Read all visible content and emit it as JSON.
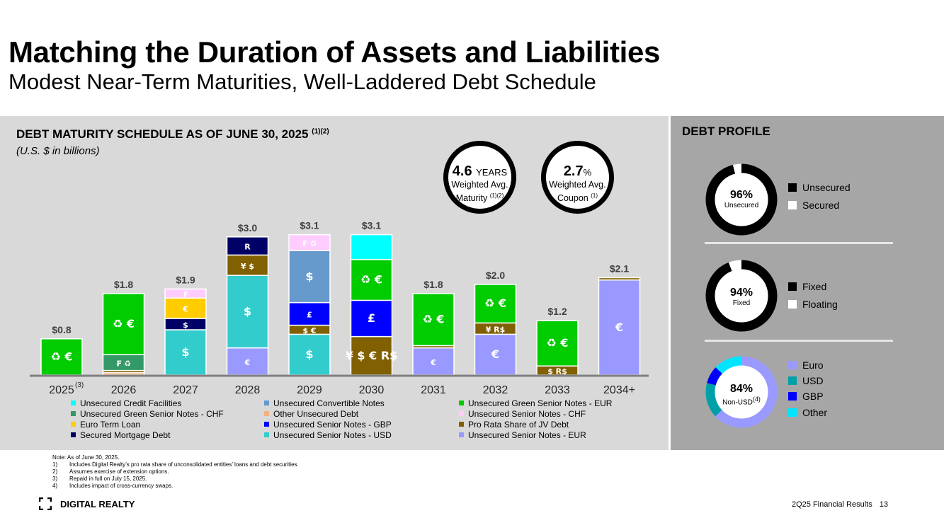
{
  "header": {
    "title": "Matching the Duration of Assets and Liabilities",
    "subtitle": "Modest Near-Term Maturities, Well-Laddered Debt Schedule"
  },
  "left_panel": {
    "title": "DEBT MATURITY SCHEDULE AS OF JUNE 30, 2025",
    "title_note": "(1)(2)",
    "units": "(U.S. $ in billions)"
  },
  "stats": [
    {
      "value": "4.6",
      "unit": "YEARS",
      "line1": "Weighted Avg.",
      "line2": "Maturity",
      "note": "(1)(2)"
    },
    {
      "value": "2.7",
      "unit": "%",
      "line1": "Weighted Avg.",
      "line2": "Coupon",
      "note": "(1)"
    }
  ],
  "colors": {
    "cyan": "#00ffff",
    "green_chf": "#339966",
    "yellow": "#ffcc00",
    "navy": "#000066",
    "blue_conv": "#6699cc",
    "salmon": "#f4b183",
    "gbp": "#0000ff",
    "teal": "#33cccc",
    "green": "#00cc00",
    "pink": "#ffccff",
    "olive": "#806000",
    "lavender": "#9999ff"
  },
  "chart_data": {
    "type": "bar",
    "stacked": true,
    "title": "DEBT MATURITY SCHEDULE AS OF JUNE 30, 2025",
    "ylabel": "U.S. $ in billions",
    "ylim": [
      0,
      3.5
    ],
    "categories": [
      "2025",
      "2026",
      "2027",
      "2028",
      "2029",
      "2030",
      "2031",
      "2032",
      "2033",
      "2034+"
    ],
    "category_notes": [
      "(3)",
      "",
      "",
      "",
      "",
      "",
      "",
      "",
      "",
      ""
    ],
    "totals": [
      "$0.8",
      "$1.8",
      "$1.9",
      "$3.0",
      "$3.1",
      "$3.1",
      "$1.8",
      "$2.0",
      "$1.2",
      "$2.1"
    ],
    "series": [
      {
        "name": "Unsecured Senior Notes - EUR",
        "color": "lavender",
        "values": [
          0,
          0,
          0,
          0.6,
          0,
          0,
          0.6,
          0.9,
          0,
          2.1
        ],
        "symbols": [
          "",
          "",
          "",
          "€",
          "",
          "",
          "€",
          "€",
          "",
          "€"
        ]
      },
      {
        "name": "Unsecured Senior Notes - USD",
        "color": "teal",
        "values": [
          0,
          0,
          1.0,
          1.6,
          0.9,
          0,
          0,
          0,
          0,
          0
        ],
        "symbols": [
          "",
          "",
          "$",
          "$",
          "$",
          "",
          "",
          "",
          "",
          ""
        ]
      },
      {
        "name": "Other Unsecured Debt",
        "color": "salmon",
        "values": [
          0,
          0.05,
          0,
          0,
          0,
          0,
          0,
          0,
          0,
          0
        ],
        "symbols": [
          "",
          "",
          "",
          "",
          "",
          "",
          "",
          "",
          "",
          ""
        ]
      },
      {
        "name": "Pro Rata Share of JV Debt",
        "color": "olive",
        "values": [
          0,
          0.05,
          0,
          0.45,
          0.2,
          0.85,
          0.05,
          0.25,
          0.2,
          0.05
        ],
        "symbols": [
          "",
          "",
          "",
          "¥ $",
          "$ €",
          "¥ $ € R$",
          "",
          "¥ R$",
          "$ R$",
          ""
        ]
      },
      {
        "name": "Unsecured Green Senior Notes - CHF",
        "color": "green_chf",
        "values": [
          0,
          0.35,
          0,
          0,
          0,
          0,
          0,
          0,
          0,
          0
        ],
        "symbols": [
          "",
          "₣ ♻",
          "",
          "",
          "",
          "",
          "",
          "",
          "",
          ""
        ]
      },
      {
        "name": "Unsecured Senior Notes - GBP",
        "color": "gbp",
        "values": [
          0,
          0,
          0,
          0,
          0.5,
          0.8,
          0,
          0,
          0,
          0
        ],
        "symbols": [
          "",
          "",
          "",
          "",
          "£",
          "£",
          "",
          "",
          "",
          ""
        ]
      },
      {
        "name": "Secured Mortgage Debt",
        "color": "navy",
        "values": [
          0,
          0,
          0.25,
          0.4,
          0,
          0,
          0,
          0,
          0,
          0
        ],
        "symbols": [
          "",
          "",
          "$",
          "R",
          "",
          "",
          "",
          "",
          "",
          ""
        ]
      },
      {
        "name": "Unsecured Convertible Notes",
        "color": "blue_conv",
        "values": [
          0,
          0,
          0,
          0,
          1.15,
          0,
          0,
          0,
          0,
          0
        ],
        "symbols": [
          "",
          "",
          "",
          "",
          "$",
          "",
          "",
          "",
          "",
          ""
        ]
      },
      {
        "name": "Unsecured Green Senior Notes - EUR",
        "color": "green",
        "values": [
          0.8,
          1.35,
          0,
          0,
          0,
          0.9,
          1.15,
          0.85,
          1.0,
          0
        ],
        "symbols": [
          "♻ €",
          "♻ €",
          "",
          "",
          "",
          "♻ €",
          "♻ €",
          "♻ €",
          "♻ €",
          ""
        ]
      },
      {
        "name": "Euro Term Loan",
        "color": "yellow",
        "values": [
          0,
          0,
          0.45,
          0,
          0,
          0,
          0,
          0,
          0,
          0
        ],
        "symbols": [
          "",
          "",
          "€",
          "",
          "",
          "",
          "",
          "",
          "",
          ""
        ]
      },
      {
        "name": "Unsecured Senior Notes - CHF",
        "color": "pink",
        "values": [
          0,
          0,
          0.2,
          0,
          0.35,
          0,
          0,
          0,
          0,
          0
        ],
        "symbols": [
          "",
          "",
          "₣",
          "",
          "₣ ♻",
          "",
          "",
          "",
          "",
          ""
        ]
      },
      {
        "name": "Unsecured Credit Facilities",
        "color": "cyan",
        "values": [
          0,
          0,
          0,
          0,
          0,
          0.55,
          0,
          0,
          0,
          0
        ],
        "symbols": [
          "",
          "",
          "",
          "",
          "",
          "",
          "",
          "",
          "",
          ""
        ]
      }
    ],
    "legend": [
      {
        "name": "Unsecured Credit Facilities",
        "color": "cyan"
      },
      {
        "name": "Unsecured Convertible Notes",
        "color": "blue_conv"
      },
      {
        "name": "Unsecured Green Senior Notes - EUR",
        "color": "green"
      },
      {
        "name": "Unsecured Green Senior Notes - CHF",
        "color": "green_chf"
      },
      {
        "name": "Other Unsecured Debt",
        "color": "salmon"
      },
      {
        "name": "Unsecured Senior Notes - CHF",
        "color": "pink"
      },
      {
        "name": "Euro Term Loan",
        "color": "yellow"
      },
      {
        "name": "Unsecured Senior Notes - GBP",
        "color": "gbp"
      },
      {
        "name": "Pro Rata Share of JV Debt",
        "color": "olive"
      },
      {
        "name": "Secured Mortgage Debt",
        "color": "navy"
      },
      {
        "name": "Unsecured Senior Notes - USD",
        "color": "teal"
      },
      {
        "name": "Unsecured Senior Notes - EUR",
        "color": "lavender"
      }
    ]
  },
  "debt_profile": {
    "title": "DEBT PROFILE",
    "donuts": [
      {
        "pct": "96%",
        "label": "Unsecured",
        "note": "",
        "segments": [
          {
            "name": "Unsecured",
            "value": 96,
            "color": "#000000"
          },
          {
            "name": "Secured",
            "value": 4,
            "color": "#ffffff"
          }
        ]
      },
      {
        "pct": "94%",
        "label": "Fixed",
        "note": "",
        "segments": [
          {
            "name": "Fixed",
            "value": 94,
            "color": "#000000"
          },
          {
            "name": "Floating",
            "value": 6,
            "color": "#ffffff"
          }
        ]
      },
      {
        "pct": "84%",
        "label": "Non-USD",
        "note": "(4)",
        "segments": [
          {
            "name": "Euro",
            "value": 63,
            "color": "#9999ff"
          },
          {
            "name": "USD",
            "value": 16,
            "color": "#00a0a8"
          },
          {
            "name": "GBP",
            "value": 8,
            "color": "#0000ff"
          },
          {
            "name": "Other",
            "value": 13,
            "color": "#00e5ff"
          }
        ]
      }
    ]
  },
  "notes": {
    "intro": "Note:  As of June 30, 2025.",
    "items": [
      {
        "num": "1)",
        "text": "Includes Digital Realty’s pro rata share of unconsolidated entities’ loans and debt securities."
      },
      {
        "num": "2)",
        "text": "Assumes exercise of extension options."
      },
      {
        "num": "3)",
        "text": "Repaid in full on July 15, 2025."
      },
      {
        "num": "4)",
        "text": "Includes impact of cross-currency swaps."
      }
    ]
  },
  "footer": {
    "logo": "DIGITAL REALTY",
    "label": "2Q25 Financial Results",
    "page": "13"
  }
}
